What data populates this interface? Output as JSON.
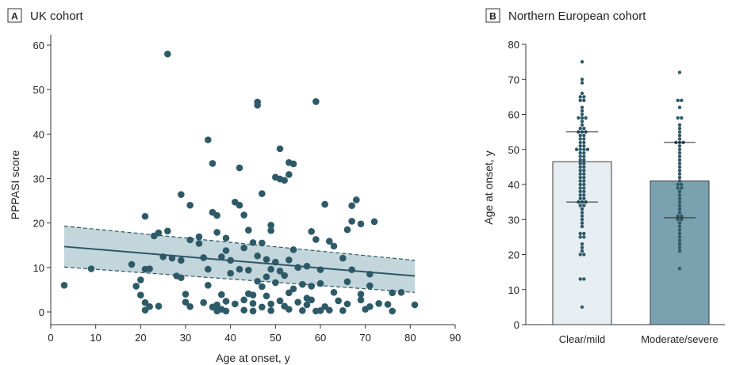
{
  "panels": {
    "a": {
      "letter": "A",
      "title": "UK cohort"
    },
    "b": {
      "letter": "B",
      "title": "Northern European cohort"
    }
  },
  "colors": {
    "point": "#2e5a68",
    "line": "#2f5664",
    "band": "#b9cfd6",
    "bar_left": "#e6eef1",
    "bar_right": "#7aa1b0",
    "axis": "#333333"
  },
  "chart_data": [
    {
      "type": "scatter",
      "panel": "A",
      "title": "UK cohort",
      "xlabel": "Age at onset, y",
      "ylabel": "PPPASI score",
      "xlim": [
        0,
        90
      ],
      "ylim": [
        0,
        60
      ],
      "xticks": [
        0,
        10,
        20,
        30,
        40,
        50,
        60,
        70,
        80,
        90
      ],
      "yticks": [
        0,
        10,
        20,
        30,
        40,
        50,
        60
      ],
      "regression": {
        "x": [
          3,
          81
        ],
        "y": [
          14.7,
          8.1
        ],
        "ci_upper": [
          19.3,
          11.6
        ],
        "ci_lower": [
          10.1,
          4.4
        ]
      },
      "points": [
        [
          26,
          58
        ],
        [
          46,
          47.2
        ],
        [
          46,
          46.5
        ],
        [
          59,
          47.3
        ],
        [
          35,
          38.7
        ],
        [
          51,
          36.7
        ],
        [
          36,
          33.4
        ],
        [
          42,
          32.4
        ],
        [
          53,
          33.6
        ],
        [
          54,
          33.3
        ],
        [
          50,
          30.3
        ],
        [
          51,
          29.9
        ],
        [
          52,
          29.6
        ],
        [
          53,
          30.9
        ],
        [
          47,
          26.6
        ],
        [
          29,
          26.4
        ],
        [
          31,
          24
        ],
        [
          41,
          24.7
        ],
        [
          42,
          24
        ],
        [
          61,
          24.2
        ],
        [
          67,
          23.9
        ],
        [
          68,
          25.2
        ],
        [
          21,
          21.5
        ],
        [
          36,
          22.4
        ],
        [
          37,
          21.7
        ],
        [
          43,
          21.8
        ],
        [
          49,
          19.5
        ],
        [
          72,
          20.3
        ],
        [
          24,
          17.8
        ],
        [
          26,
          18.2
        ],
        [
          31,
          16.2
        ],
        [
          33,
          16.9
        ],
        [
          37,
          17.9
        ],
        [
          39,
          16.6
        ],
        [
          44,
          18.4
        ],
        [
          49,
          18.3
        ],
        [
          58,
          18.1
        ],
        [
          66,
          18.5
        ],
        [
          67,
          20.4
        ],
        [
          69,
          19.8
        ],
        [
          23,
          17.1
        ],
        [
          33,
          15.4
        ],
        [
          39,
          13.8
        ],
        [
          43,
          14.4
        ],
        [
          45,
          15.6
        ],
        [
          47,
          15.5
        ],
        [
          54,
          14
        ],
        [
          59,
          16.3
        ],
        [
          62,
          15.9
        ],
        [
          63,
          14.8
        ],
        [
          25,
          12.4
        ],
        [
          27,
          12.1
        ],
        [
          29,
          11.6
        ],
        [
          34,
          12.2
        ],
        [
          38,
          12.4
        ],
        [
          40,
          11.6
        ],
        [
          46,
          12.6
        ],
        [
          48,
          11.8
        ],
        [
          50,
          11.2
        ],
        [
          53,
          11.7
        ],
        [
          57,
          10.3
        ],
        [
          65,
          12.1
        ],
        [
          18,
          10.7
        ],
        [
          9,
          9.7
        ],
        [
          21,
          9.6
        ],
        [
          22,
          9.7
        ],
        [
          35,
          9.6
        ],
        [
          42,
          9.6
        ],
        [
          44,
          9.4
        ],
        [
          49,
          9.6
        ],
        [
          51,
          9.2
        ],
        [
          55,
          10
        ],
        [
          60,
          9.5
        ],
        [
          67,
          9.5
        ],
        [
          71,
          8.5
        ],
        [
          28,
          8.1
        ],
        [
          29,
          7.7
        ],
        [
          40,
          8.7
        ],
        [
          48,
          7.9
        ],
        [
          52,
          8.2
        ],
        [
          3,
          6
        ],
        [
          19,
          5.8
        ],
        [
          20,
          7.2
        ],
        [
          35,
          6
        ],
        [
          46,
          6.9
        ],
        [
          47,
          5.7
        ],
        [
          50,
          6.6
        ],
        [
          54,
          5.2
        ],
        [
          56,
          6.2
        ],
        [
          58,
          5.8
        ],
        [
          60,
          6.4
        ],
        [
          66,
          6.8
        ],
        [
          71,
          5.9
        ],
        [
          20,
          3.8
        ],
        [
          30,
          4
        ],
        [
          38,
          3.9
        ],
        [
          44,
          4.1
        ],
        [
          45,
          3.8
        ],
        [
          48,
          3.6
        ],
        [
          53,
          4.3
        ],
        [
          57,
          3.1
        ],
        [
          63,
          4.4
        ],
        [
          69,
          4
        ],
        [
          76,
          4.3
        ],
        [
          78,
          4.4
        ],
        [
          21,
          2.1
        ],
        [
          24,
          1.3
        ],
        [
          30,
          2.2
        ],
        [
          31,
          1.2
        ],
        [
          34,
          2.1
        ],
        [
          36,
          1.1
        ],
        [
          37,
          1.6
        ],
        [
          39,
          2.4
        ],
        [
          41,
          1.8
        ],
        [
          43,
          2.7
        ],
        [
          45,
          1.9
        ],
        [
          47,
          1.1
        ],
        [
          49,
          1.8
        ],
        [
          51,
          2.5
        ],
        [
          52,
          1.3
        ],
        [
          55,
          2.2
        ],
        [
          57,
          1.6
        ],
        [
          58,
          2.7
        ],
        [
          61,
          1.2
        ],
        [
          64,
          2.5
        ],
        [
          66,
          1.8
        ],
        [
          69,
          2.7
        ],
        [
          71,
          1.2
        ],
        [
          73,
          1.9
        ],
        [
          75,
          1.7
        ],
        [
          81,
          1.6
        ],
        [
          21,
          0.4
        ],
        [
          22,
          1.2
        ],
        [
          37,
          0.2
        ],
        [
          38,
          0.6
        ],
        [
          39,
          0.2
        ],
        [
          43,
          0.4
        ],
        [
          45,
          0.2
        ],
        [
          49,
          0.3
        ],
        [
          53,
          0.6
        ],
        [
          56,
          0.3
        ],
        [
          59,
          0.2
        ],
        [
          60,
          0.3
        ],
        [
          62,
          0.4
        ],
        [
          65,
          0.3
        ],
        [
          70,
          0.6
        ],
        [
          76,
          0.2
        ]
      ]
    },
    {
      "type": "bar",
      "panel": "B",
      "title": "Northern European cohort",
      "xlabel": "",
      "ylabel": "Age at onset, y",
      "ylim": [
        0,
        80
      ],
      "yticks": [
        0,
        10,
        20,
        30,
        40,
        50,
        60,
        70,
        80
      ],
      "categories": [
        "Clear/mild",
        "Moderate/severe"
      ],
      "values": [
        46.5,
        41
      ],
      "quartiles": [
        [
          35,
          55
        ],
        [
          30.5,
          52
        ]
      ],
      "points": [
        [
          75,
          70,
          69,
          66,
          65,
          65,
          64,
          64,
          62,
          61,
          60,
          59,
          59,
          59,
          58,
          57,
          56,
          56,
          55,
          55,
          55,
          54,
          54,
          53,
          53,
          52,
          52,
          51,
          51,
          50,
          50,
          50,
          50,
          49,
          49,
          48,
          48,
          47,
          47,
          46,
          46,
          45,
          45,
          44,
          44,
          43,
          43,
          42,
          42,
          41,
          41,
          40,
          40,
          39,
          39,
          38,
          38,
          37,
          37,
          36,
          36,
          35,
          35,
          35,
          34,
          34,
          33,
          32,
          31,
          30,
          29,
          28,
          26,
          26,
          25,
          25,
          23,
          22,
          21,
          20,
          20,
          13,
          13,
          5
        ],
        [
          72,
          64,
          64,
          62,
          59,
          59,
          57,
          56,
          55,
          54,
          53,
          52,
          52,
          52,
          51,
          50,
          49,
          48,
          47,
          46,
          45,
          44,
          43,
          42,
          41,
          40,
          40,
          39,
          39,
          38,
          37,
          36,
          35,
          34,
          33,
          32,
          31,
          31,
          30,
          30,
          29,
          28,
          27,
          26,
          25,
          24,
          23,
          22,
          21,
          16
        ]
      ]
    }
  ]
}
